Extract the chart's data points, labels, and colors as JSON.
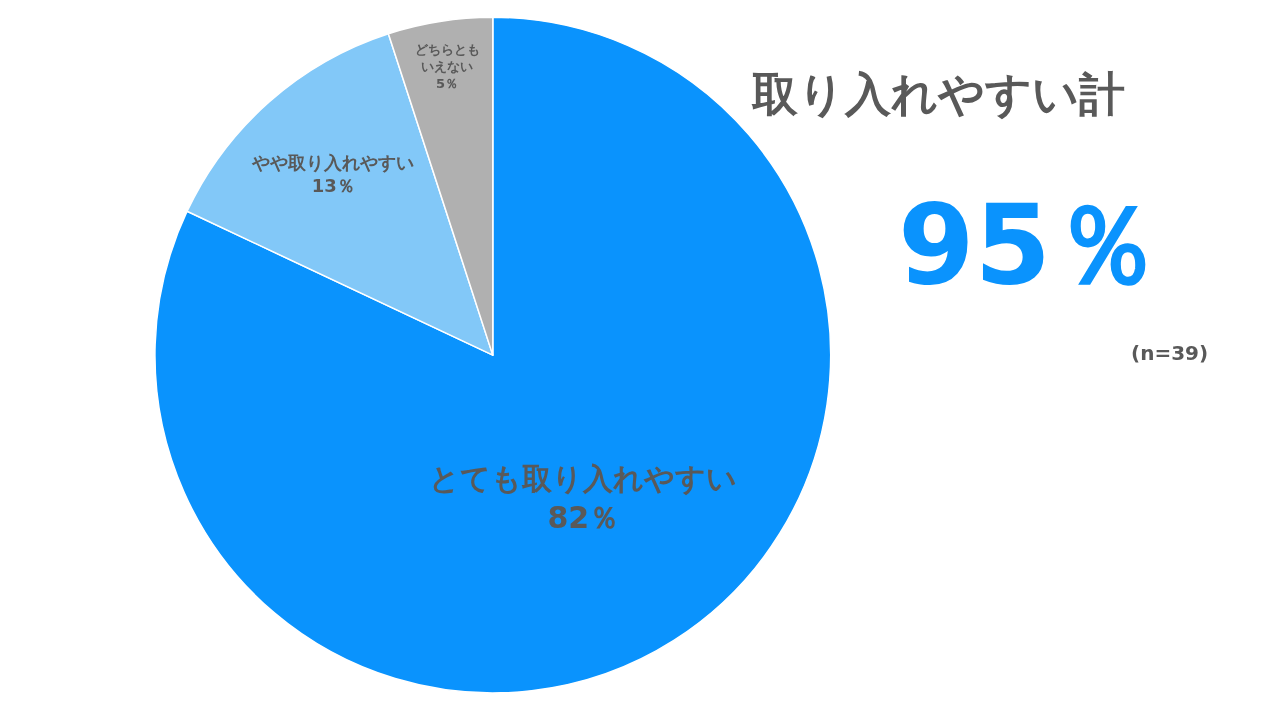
{
  "chart_data": {
    "type": "pie",
    "categories": [
      "とても取り入れやすい",
      "やや取り入れやすい",
      "どちらともいえない"
    ],
    "values": [
      82,
      13,
      5
    ],
    "value_labels": [
      "82％",
      "13％",
      "5％"
    ],
    "colors": [
      "#0a93fd",
      "#82c8f8",
      "#b0b0b0"
    ],
    "legend": false,
    "annotations": [
      "取り入れやすい計",
      "95％",
      "(n=39)"
    ]
  }
}
